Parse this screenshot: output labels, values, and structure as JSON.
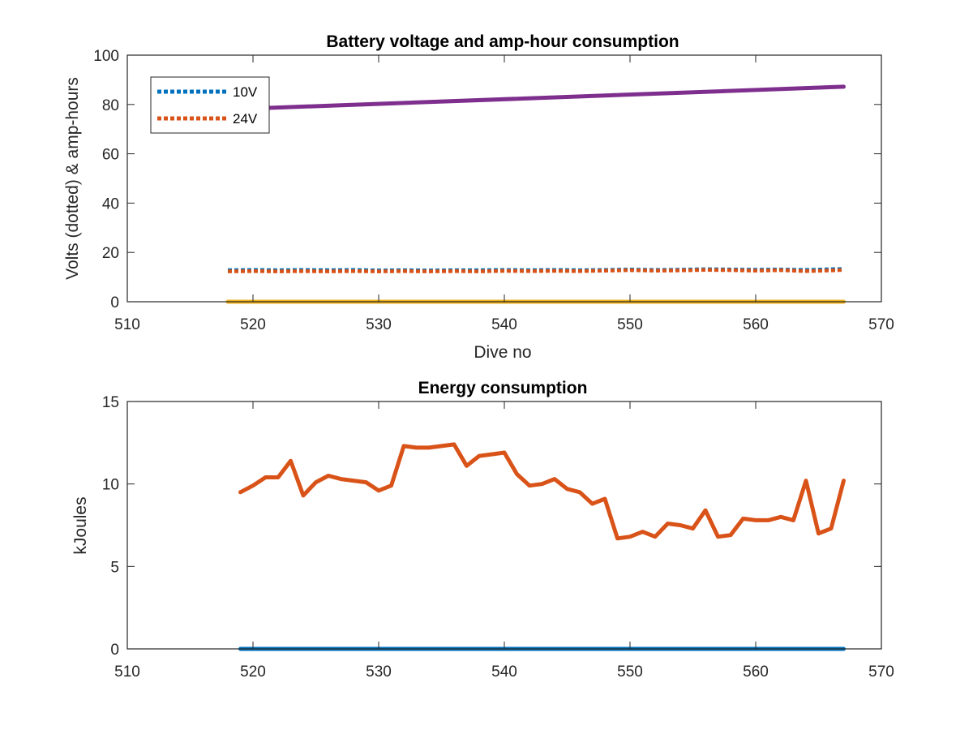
{
  "chart_data": [
    {
      "type": "line",
      "title": "Battery voltage and amp-hour consumption",
      "xlabel": "Dive no",
      "ylabel": "Volts (dotted) & amp-hours",
      "xlim": [
        510,
        570
      ],
      "ylim": [
        0,
        100
      ],
      "xticks": [
        "510",
        "520",
        "530",
        "540",
        "550",
        "560",
        "570"
      ],
      "yticks": [
        "0",
        "20",
        "40",
        "60",
        "80",
        "100"
      ],
      "grid": false,
      "legend_position": "top-left",
      "series": [
        {
          "name": "10V",
          "color": "#0072BD",
          "style": "dotted",
          "x": [
            518,
            520,
            522,
            524,
            526,
            528,
            530,
            532,
            534,
            536,
            538,
            540,
            542,
            544,
            546,
            548,
            550,
            552,
            554,
            556,
            558,
            560,
            562,
            564,
            566,
            567
          ],
          "y": [
            12.8,
            12.9,
            12.8,
            12.9,
            12.8,
            12.9,
            12.7,
            12.8,
            12.7,
            12.8,
            12.8,
            12.9,
            12.8,
            12.9,
            12.8,
            12.9,
            13.1,
            12.9,
            13.0,
            13.2,
            13.1,
            13.0,
            13.1,
            12.9,
            13.2,
            13.3
          ]
        },
        {
          "color": "#D95319",
          "style": "dotted",
          "name": "24V",
          "x": [
            518,
            520,
            522,
            524,
            526,
            528,
            530,
            532,
            534,
            536,
            538,
            540,
            542,
            544,
            546,
            548,
            550,
            552,
            554,
            556,
            558,
            560,
            562,
            564,
            566,
            567
          ],
          "y": [
            12.3,
            12.4,
            12.3,
            12.4,
            12.3,
            12.4,
            12.3,
            12.4,
            12.3,
            12.4,
            12.3,
            12.5,
            12.4,
            12.5,
            12.4,
            12.6,
            12.8,
            12.6,
            12.7,
            12.9,
            12.8,
            12.6,
            12.8,
            12.4,
            12.7,
            12.9
          ]
        },
        {
          "color": "#EDB120",
          "style": "solid",
          "x": [
            518,
            567
          ],
          "y": [
            0,
            0
          ]
        },
        {
          "color": "#7E2F8E",
          "style": "solid",
          "x": [
            518,
            567
          ],
          "y": [
            78,
            87.2
          ]
        }
      ]
    },
    {
      "type": "line",
      "title": "Energy consumption",
      "xlabel": "",
      "ylabel": "kJoules",
      "xlim": [
        510,
        570
      ],
      "ylim": [
        0,
        15
      ],
      "xticks": [
        "510",
        "520",
        "530",
        "540",
        "550",
        "560",
        "570"
      ],
      "yticks": [
        "0",
        "5",
        "10",
        "15"
      ],
      "grid": false,
      "series": [
        {
          "color": "#0072BD",
          "style": "solid",
          "x": [
            519,
            567
          ],
          "y": [
            0,
            0
          ]
        },
        {
          "color": "#D95319",
          "style": "solid",
          "x": [
            519,
            520,
            521,
            522,
            523,
            524,
            525,
            526,
            527,
            528,
            529,
            530,
            531,
            532,
            533,
            534,
            535,
            536,
            537,
            538,
            539,
            540,
            541,
            542,
            543,
            544,
            545,
            546,
            547,
            548,
            549,
            550,
            551,
            552,
            553,
            554,
            555,
            556,
            557,
            558,
            559,
            560,
            561,
            562,
            563,
            564,
            565,
            566,
            567
          ],
          "y": [
            9.5,
            9.9,
            10.4,
            10.4,
            11.4,
            9.3,
            10.1,
            10.5,
            10.3,
            10.2,
            10.1,
            9.6,
            9.9,
            12.3,
            12.2,
            12.2,
            12.3,
            12.4,
            11.1,
            11.7,
            11.8,
            11.9,
            10.6,
            9.9,
            10.0,
            10.3,
            9.7,
            9.5,
            8.8,
            9.1,
            6.7,
            6.8,
            7.1,
            6.8,
            7.6,
            7.5,
            7.3,
            8.4,
            6.8,
            6.9,
            7.9,
            7.8,
            7.8,
            8.0,
            7.8,
            10.2,
            7.0,
            7.3,
            10.2
          ]
        }
      ]
    }
  ]
}
